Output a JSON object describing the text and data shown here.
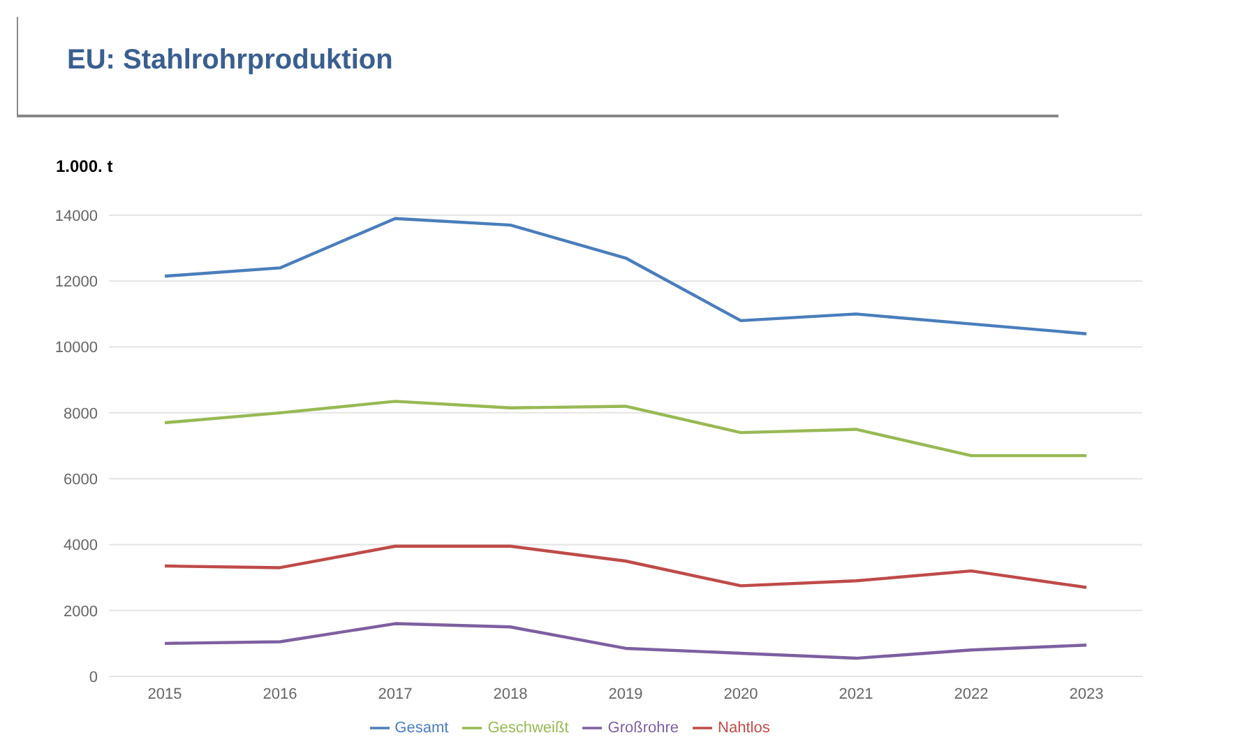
{
  "chart_data": {
    "type": "line",
    "title": "EU: Stahlrohrproduktion",
    "ylabel": "1.000. t",
    "categories": [
      "2015",
      "2016",
      "2017",
      "2018",
      "2019",
      "2020",
      "2021",
      "2022",
      "2023"
    ],
    "series": [
      {
        "name": "Gesamt",
        "color": "#4a7ebb",
        "values": [
          12150,
          12400,
          13900,
          13700,
          12700,
          10800,
          11000,
          10700,
          10400
        ]
      },
      {
        "name": "Nahtlos",
        "color": "#be4b48",
        "values": [
          3350,
          3300,
          3950,
          3950,
          3500,
          2750,
          2900,
          3200,
          2700
        ]
      },
      {
        "name": "Geschweißt",
        "color": "#98b954",
        "values": [
          7700,
          8000,
          8350,
          8150,
          8200,
          7400,
          7500,
          6700,
          6700
        ]
      },
      {
        "name": "Großrohre",
        "color": "#7d60a0",
        "values": [
          1000,
          1050,
          1600,
          1500,
          850,
          700,
          550,
          800,
          950
        ]
      }
    ],
    "ylim": [
      0,
      14000
    ],
    "yticks": [
      0,
      2000,
      4000,
      6000,
      8000,
      10000,
      12000,
      14000
    ],
    "grid": "y",
    "legend": "bottom",
    "marker": "none",
    "line_style": "solid"
  }
}
